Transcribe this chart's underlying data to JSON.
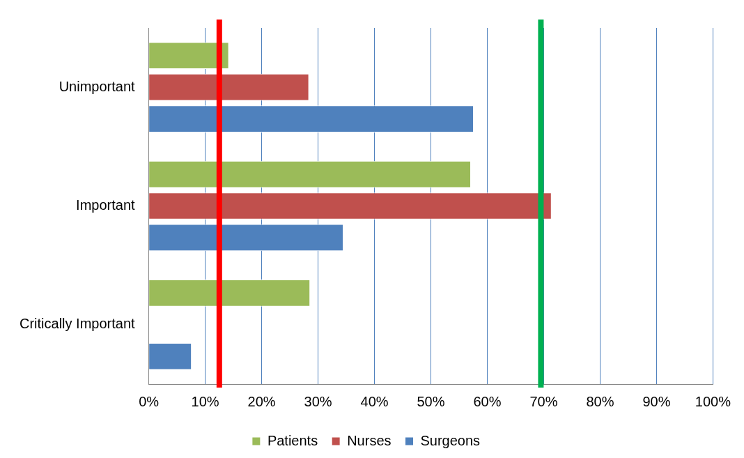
{
  "chart_data": {
    "type": "bar",
    "orientation": "horizontal",
    "categories": [
      "Unimportant",
      "Important",
      "Critically Important"
    ],
    "series": [
      {
        "name": "Patients",
        "color": "#9bbb59",
        "values": [
          14.2,
          57.1,
          28.6
        ]
      },
      {
        "name": "Nurses",
        "color": "#c0504d",
        "values": [
          28.4,
          71.4,
          null
        ]
      },
      {
        "name": "Surgeons",
        "color": "#4f81bd",
        "values": [
          57.6,
          34.5,
          7.6
        ]
      }
    ],
    "xlim": [
      0,
      100
    ],
    "xticks": [
      {
        "value": 0,
        "label": "0%"
      },
      {
        "value": 10,
        "label": "10%"
      },
      {
        "value": 20,
        "label": "20%"
      },
      {
        "value": 30,
        "label": "30%"
      },
      {
        "value": 40,
        "label": "40%"
      },
      {
        "value": 50,
        "label": "50%"
      },
      {
        "value": 60,
        "label": "60%"
      },
      {
        "value": 70,
        "label": "70%"
      },
      {
        "value": 80,
        "label": "80%"
      },
      {
        "value": 90,
        "label": "90%"
      },
      {
        "value": 100,
        "label": "100%"
      }
    ],
    "grid": "x",
    "legend": "bottom",
    "ref_lines": [
      {
        "axis": "x",
        "value": 12.5,
        "color": "#ff0000"
      },
      {
        "axis": "x",
        "value": 69.5,
        "color": "#00b050"
      }
    ]
  }
}
